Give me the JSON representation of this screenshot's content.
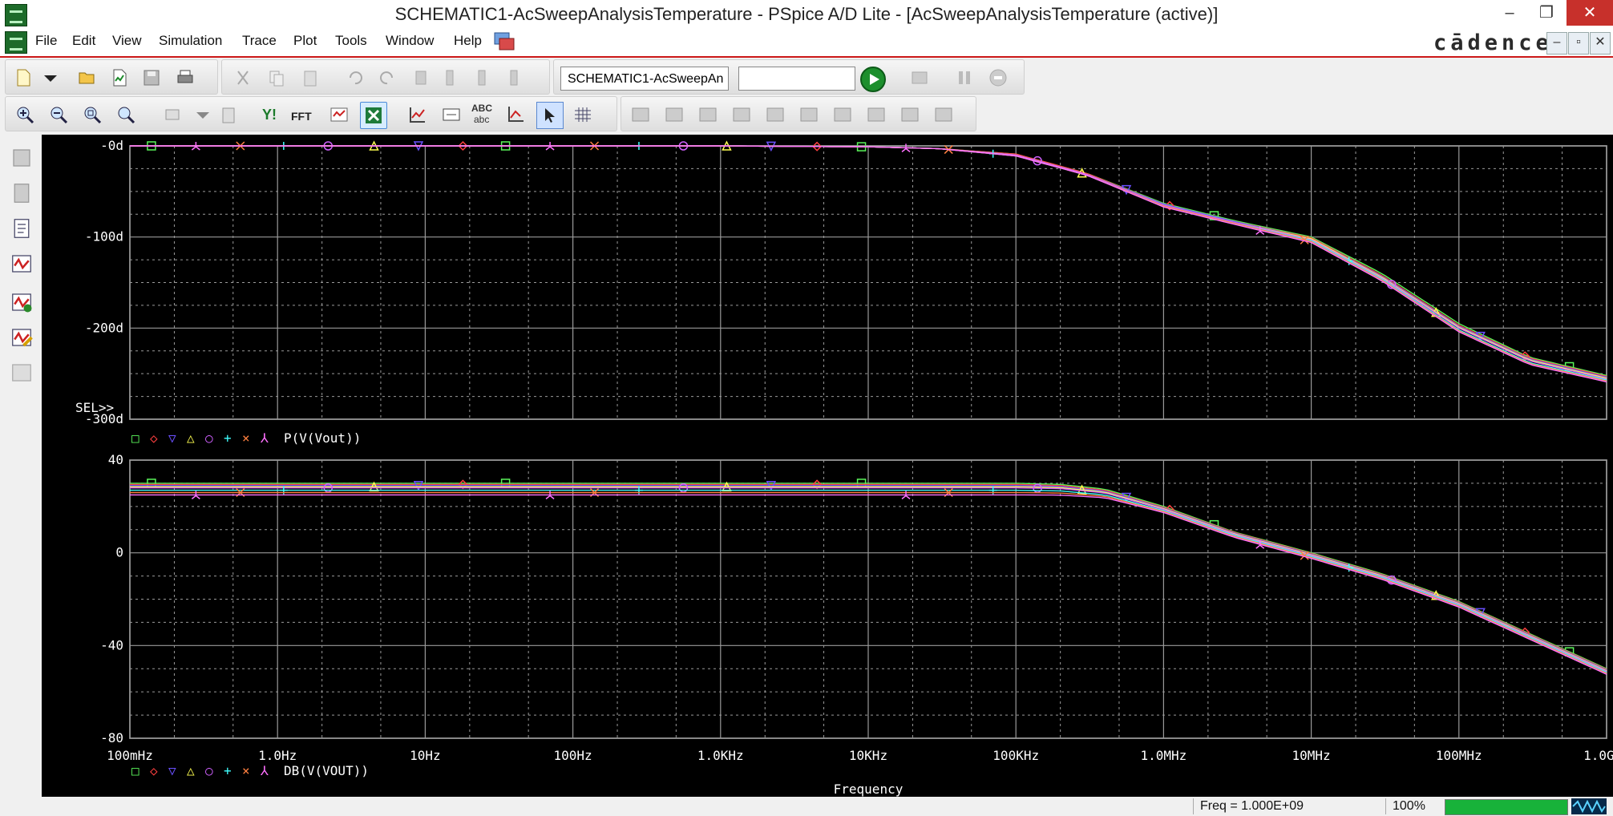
{
  "window": {
    "title": "SCHEMATIC1-AcSweepAnalysisTemperature - PSpice A/D Lite - [AcSweepAnalysisTemperature (active)]",
    "minimize": "–",
    "restore": "❐",
    "close": "✕"
  },
  "menu": {
    "items": [
      "File",
      "Edit",
      "View",
      "Simulation",
      "Trace",
      "Plot",
      "Tools",
      "Window",
      "Help"
    ],
    "brand": "cādence",
    "mdi": [
      "–",
      "▫",
      "✕"
    ]
  },
  "toolbar": {
    "profile_value": "SCHEMATIC1-AcSweepAn",
    "search_value": "",
    "yl_label": "Y!",
    "fft_label": "FFT",
    "abc_top": "ABC",
    "abc_bottom": "abc"
  },
  "colors": {
    "plot_bg": "#000000",
    "grid": "#9a9a9a",
    "axis_text": "#ffffff",
    "series": [
      "#5af55a",
      "#ff4040",
      "#6a50ff",
      "#ffff50",
      "#d060ff",
      "#40ffff",
      "#ff8040",
      "#ff70ff"
    ]
  },
  "chart_data": [
    {
      "type": "line",
      "title": "",
      "xlabel": "",
      "ylabel": "",
      "x_scale": "log",
      "xlim": [
        0.1,
        1000000000
      ],
      "ylim": [
        -300,
        0
      ],
      "y_ticks": [
        "-0d",
        "-100d",
        "-200d",
        "-300d"
      ],
      "y_tick_values": [
        0,
        -100,
        -200,
        -300
      ],
      "grid": true,
      "cursor_label": "SEL>>",
      "trace_label": "P(V(Vout))",
      "legend_markers": [
        "□",
        "◇",
        "▽",
        "△",
        "○",
        "+",
        "×",
        "⅄"
      ],
      "marker_x": [
        0.14,
        0.28,
        0.56,
        1.1,
        2.2,
        4.5,
        9,
        18,
        35,
        70,
        140,
        280,
        560,
        1100,
        2200,
        4500,
        9000,
        18000,
        35000,
        70000,
        140000,
        280000,
        560000,
        1100000,
        2200000,
        4500000,
        9000000,
        18000000,
        35000000,
        70000000,
        140000000,
        280000000,
        560000000
      ],
      "x": [
        0.1,
        1,
        10,
        100,
        1000,
        10000,
        30000,
        100000,
        300000,
        1000000,
        3000000,
        10000000,
        30000000,
        100000000,
        300000000,
        1000000000
      ],
      "series": [
        {
          "values": [
            0,
            0,
            0,
            0,
            0,
            -1,
            -3,
            -9,
            -30,
            -63,
            -82,
            -100,
            -140,
            -195,
            -232,
            -252
          ]
        },
        {
          "values": [
            0,
            0,
            0,
            0,
            0,
            -1,
            -3,
            -9,
            -30,
            -64,
            -83,
            -101,
            -142,
            -197,
            -233,
            -253
          ]
        },
        {
          "values": [
            0,
            0,
            0,
            0,
            0,
            -1,
            -3,
            -10,
            -31,
            -64,
            -83,
            -102,
            -143,
            -198,
            -234,
            -254
          ]
        },
        {
          "values": [
            0,
            0,
            0,
            0,
            0,
            -1,
            -3,
            -10,
            -31,
            -65,
            -84,
            -102,
            -144,
            -199,
            -235,
            -255
          ]
        },
        {
          "values": [
            0,
            0,
            0,
            0,
            0,
            -1,
            -3,
            -10,
            -31,
            -65,
            -84,
            -103,
            -145,
            -200,
            -236,
            -256
          ]
        },
        {
          "values": [
            0,
            0,
            0,
            0,
            0,
            -1,
            -3,
            -11,
            -32,
            -66,
            -85,
            -104,
            -146,
            -202,
            -238,
            -257
          ]
        },
        {
          "values": [
            0,
            0,
            0,
            0,
            0,
            -1,
            -3,
            -11,
            -32,
            -66,
            -85,
            -105,
            -147,
            -203,
            -239,
            -258
          ]
        },
        {
          "values": [
            0,
            0,
            0,
            0,
            0,
            -1,
            -3,
            -11,
            -32,
            -67,
            -86,
            -106,
            -148,
            -204,
            -240,
            -259
          ]
        }
      ]
    },
    {
      "type": "line",
      "title": "",
      "xlabel": "Frequency",
      "ylabel": "",
      "x_scale": "log",
      "xlim": [
        0.1,
        1000000000
      ],
      "ylim": [
        -80,
        40
      ],
      "y_ticks": [
        "40",
        "0",
        "-40",
        "-80"
      ],
      "y_tick_values": [
        40,
        0,
        -40,
        -80
      ],
      "x_ticks": [
        "100mHz",
        "1.0Hz",
        "10Hz",
        "100Hz",
        "1.0KHz",
        "10KHz",
        "100KHz",
        "1.0MHz",
        "10MHz",
        "100MHz",
        "1.0GHz"
      ],
      "x_tick_values": [
        0.1,
        1,
        10,
        100,
        1000,
        10000,
        100000,
        1000000,
        10000000,
        100000000,
        1000000000
      ],
      "grid": true,
      "trace_label": "DB(V(VOUT))",
      "legend_markers": [
        "□",
        "◇",
        "▽",
        "△",
        "○",
        "+",
        "×",
        "⅄"
      ],
      "marker_x": [
        0.14,
        0.28,
        0.56,
        1.1,
        2.2,
        4.5,
        9,
        18,
        35,
        70,
        140,
        280,
        560,
        1100,
        2200,
        4500,
        9000,
        18000,
        35000,
        70000,
        140000,
        280000,
        560000,
        1100000,
        2200000,
        4500000,
        9000000,
        18000000,
        35000000,
        70000000,
        140000000,
        280000000,
        560000000
      ],
      "x": [
        0.1,
        1,
        10,
        100,
        1000,
        10000,
        100000,
        200000,
        400000,
        1000000,
        3000000,
        10000000,
        30000000,
        100000000,
        1000000000
      ],
      "series": [
        {
          "values": [
            30,
            30,
            30,
            30,
            30,
            30,
            30,
            29.5,
            27.5,
            20,
            9,
            0,
            -9,
            -21,
            -50
          ]
        },
        {
          "values": [
            29.5,
            29.5,
            29.5,
            29.5,
            29.5,
            29.5,
            29.5,
            29,
            27,
            19.6,
            8.8,
            -0.3,
            -9.3,
            -21.3,
            -50.3
          ]
        },
        {
          "values": [
            29,
            29,
            29,
            29,
            29,
            29,
            29,
            28.6,
            26.6,
            19.3,
            8.5,
            -0.6,
            -9.6,
            -21.6,
            -50.6
          ]
        },
        {
          "values": [
            28.5,
            28.5,
            28.5,
            28.5,
            28.5,
            28.5,
            28.5,
            28.1,
            26.2,
            19,
            8.2,
            -0.9,
            -9.9,
            -21.9,
            -50.9
          ]
        },
        {
          "values": [
            28,
            28,
            28,
            28,
            28,
            28,
            28,
            27.7,
            25.8,
            18.7,
            7.9,
            -1.2,
            -10.2,
            -22.2,
            -51.2
          ]
        },
        {
          "values": [
            27,
            27,
            27,
            27,
            27,
            27,
            27,
            26.7,
            25,
            18.2,
            7.5,
            -1.6,
            -10.6,
            -22.6,
            -51.6
          ]
        },
        {
          "values": [
            26,
            26,
            26,
            26,
            26,
            26,
            26,
            25.8,
            24.4,
            17.8,
            7.1,
            -2,
            -11,
            -23,
            -52
          ]
        },
        {
          "values": [
            25,
            25,
            25,
            25,
            25,
            25,
            25,
            24.9,
            23.8,
            17.4,
            6.7,
            -2.4,
            -11.4,
            -23.4,
            -52.4
          ]
        }
      ]
    }
  ],
  "status": {
    "freq": "Freq = 1.000E+09",
    "zoom": "100%"
  }
}
